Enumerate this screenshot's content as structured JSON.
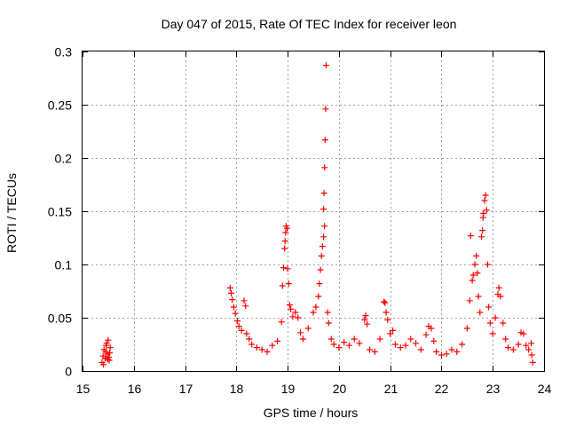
{
  "chart_data": {
    "type": "scatter",
    "title": "Day 047 of 2015, Rate Of TEC Index for receiver leon",
    "xlabel": "GPS time / hours",
    "ylabel": "ROTI / TECUs",
    "xlim": [
      15,
      24
    ],
    "ylim": [
      0,
      0.3
    ],
    "xticks": [
      "15",
      "16",
      "17",
      "18",
      "19",
      "20",
      "21",
      "22",
      "23",
      "24"
    ],
    "yticks": [
      "0",
      "0.05",
      "0.1",
      "0.15",
      "0.2",
      "0.25",
      "0.3"
    ],
    "grid": true,
    "marker": "+",
    "color": "#ff0000",
    "series": [
      {
        "name": "ROTI",
        "points": [
          [
            15.38,
            0.008
          ],
          [
            15.4,
            0.014
          ],
          [
            15.42,
            0.02
          ],
          [
            15.44,
            0.012
          ],
          [
            15.46,
            0.024
          ],
          [
            15.48,
            0.016
          ],
          [
            15.5,
            0.029
          ],
          [
            15.52,
            0.01
          ],
          [
            15.54,
            0.022
          ],
          [
            15.41,
            0.006
          ],
          [
            15.45,
            0.018
          ],
          [
            15.49,
            0.011
          ],
          [
            15.53,
            0.017
          ],
          [
            15.47,
            0.026
          ],
          [
            15.51,
            0.013
          ],
          [
            17.88,
            0.078
          ],
          [
            17.9,
            0.073
          ],
          [
            17.92,
            0.067
          ],
          [
            17.95,
            0.06
          ],
          [
            17.98,
            0.054
          ],
          [
            18.02,
            0.047
          ],
          [
            18.05,
            0.042
          ],
          [
            18.1,
            0.038
          ],
          [
            18.15,
            0.066
          ],
          [
            18.18,
            0.061
          ],
          [
            18.2,
            0.035
          ],
          [
            18.25,
            0.03
          ],
          [
            18.3,
            0.025
          ],
          [
            18.4,
            0.022
          ],
          [
            18.5,
            0.02
          ],
          [
            18.6,
            0.018
          ],
          [
            18.7,
            0.024
          ],
          [
            18.8,
            0.028
          ],
          [
            18.88,
            0.046
          ],
          [
            18.9,
            0.08
          ],
          [
            18.92,
            0.097
          ],
          [
            18.94,
            0.115
          ],
          [
            18.95,
            0.122
          ],
          [
            18.96,
            0.13
          ],
          [
            18.97,
            0.136
          ],
          [
            18.99,
            0.134
          ],
          [
            19.0,
            0.096
          ],
          [
            19.02,
            0.082
          ],
          [
            19.04,
            0.062
          ],
          [
            19.06,
            0.058
          ],
          [
            19.1,
            0.051
          ],
          [
            19.15,
            0.055
          ],
          [
            19.2,
            0.05
          ],
          [
            19.25,
            0.036
          ],
          [
            19.3,
            0.03
          ],
          [
            19.4,
            0.04
          ],
          [
            19.5,
            0.055
          ],
          [
            19.55,
            0.06
          ],
          [
            19.6,
            0.07
          ],
          [
            19.62,
            0.082
          ],
          [
            19.64,
            0.095
          ],
          [
            19.66,
            0.108
          ],
          [
            19.68,
            0.117
          ],
          [
            19.7,
            0.126
          ],
          [
            19.72,
            0.136
          ],
          [
            19.7,
            0.152
          ],
          [
            19.71,
            0.167
          ],
          [
            19.72,
            0.191
          ],
          [
            19.73,
            0.217
          ],
          [
            19.74,
            0.246
          ],
          [
            19.75,
            0.287
          ],
          [
            19.78,
            0.055
          ],
          [
            19.8,
            0.045
          ],
          [
            19.85,
            0.03
          ],
          [
            19.9,
            0.025
          ],
          [
            20.0,
            0.022
          ],
          [
            20.1,
            0.027
          ],
          [
            20.2,
            0.024
          ],
          [
            20.3,
            0.03
          ],
          [
            20.4,
            0.026
          ],
          [
            20.5,
            0.048
          ],
          [
            20.52,
            0.052
          ],
          [
            20.55,
            0.044
          ],
          [
            20.6,
            0.02
          ],
          [
            20.7,
            0.018
          ],
          [
            20.8,
            0.03
          ],
          [
            20.88,
            0.065
          ],
          [
            20.9,
            0.064
          ],
          [
            20.92,
            0.055
          ],
          [
            20.95,
            0.048
          ],
          [
            21.0,
            0.035
          ],
          [
            21.05,
            0.038
          ],
          [
            21.1,
            0.025
          ],
          [
            21.2,
            0.022
          ],
          [
            21.3,
            0.024
          ],
          [
            21.4,
            0.03
          ],
          [
            21.5,
            0.026
          ],
          [
            21.6,
            0.02
          ],
          [
            21.7,
            0.034
          ],
          [
            21.75,
            0.042
          ],
          [
            21.8,
            0.04
          ],
          [
            21.85,
            0.028
          ],
          [
            21.9,
            0.018
          ],
          [
            22.0,
            0.015
          ],
          [
            22.1,
            0.016
          ],
          [
            22.2,
            0.02
          ],
          [
            22.3,
            0.018
          ],
          [
            22.4,
            0.025
          ],
          [
            22.5,
            0.04
          ],
          [
            22.55,
            0.066
          ],
          [
            22.57,
            0.127
          ],
          [
            22.6,
            0.085
          ],
          [
            22.62,
            0.09
          ],
          [
            22.65,
            0.1
          ],
          [
            22.68,
            0.108
          ],
          [
            22.7,
            0.092
          ],
          [
            22.72,
            0.07
          ],
          [
            22.75,
            0.055
          ],
          [
            22.78,
            0.126
          ],
          [
            22.8,
            0.132
          ],
          [
            22.81,
            0.144
          ],
          [
            22.82,
            0.148
          ],
          [
            22.84,
            0.16
          ],
          [
            22.86,
            0.165
          ],
          [
            22.88,
            0.151
          ],
          [
            22.9,
            0.1
          ],
          [
            22.92,
            0.06
          ],
          [
            22.95,
            0.045
          ],
          [
            23.0,
            0.035
          ],
          [
            23.05,
            0.05
          ],
          [
            23.1,
            0.072
          ],
          [
            23.12,
            0.078
          ],
          [
            23.15,
            0.07
          ],
          [
            23.2,
            0.045
          ],
          [
            23.25,
            0.03
          ],
          [
            23.3,
            0.022
          ],
          [
            23.4,
            0.02
          ],
          [
            23.5,
            0.025
          ],
          [
            23.55,
            0.036
          ],
          [
            23.6,
            0.035
          ],
          [
            23.65,
            0.024
          ],
          [
            23.7,
            0.02
          ],
          [
            23.75,
            0.026
          ],
          [
            23.78,
            0.008
          ],
          [
            23.76,
            0.015
          ]
        ]
      }
    ]
  }
}
